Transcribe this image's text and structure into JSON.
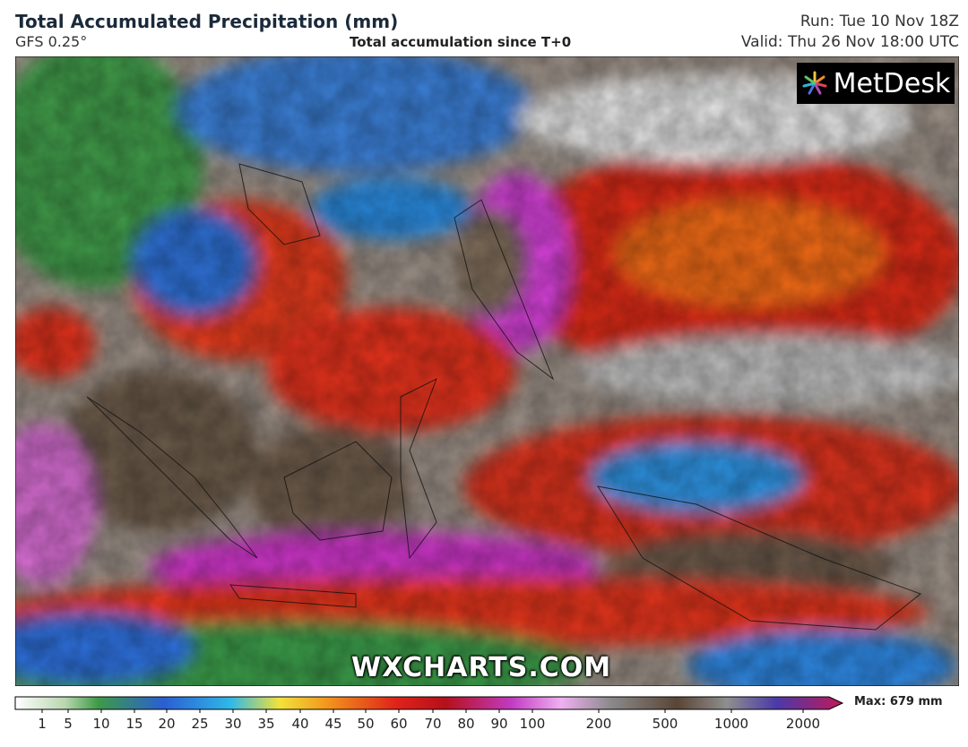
{
  "header": {
    "title": "Total Accumulated Precipitation (mm)",
    "model": "GFS 0.25°",
    "subtitle": "Total accumulation since T+0",
    "run": "Run: Tue 10 Nov 18Z",
    "valid": "Valid: Thu 26 Nov 18:00 UTC"
  },
  "logo": "MetDesk",
  "watermark": "WXCHARTS.COM",
  "legend": {
    "ticks": [
      1,
      5,
      10,
      15,
      20,
      25,
      30,
      35,
      40,
      45,
      50,
      60,
      70,
      80,
      90,
      100,
      200,
      500,
      1000,
      2000
    ],
    "max": "Max: 679 mm"
  }
}
